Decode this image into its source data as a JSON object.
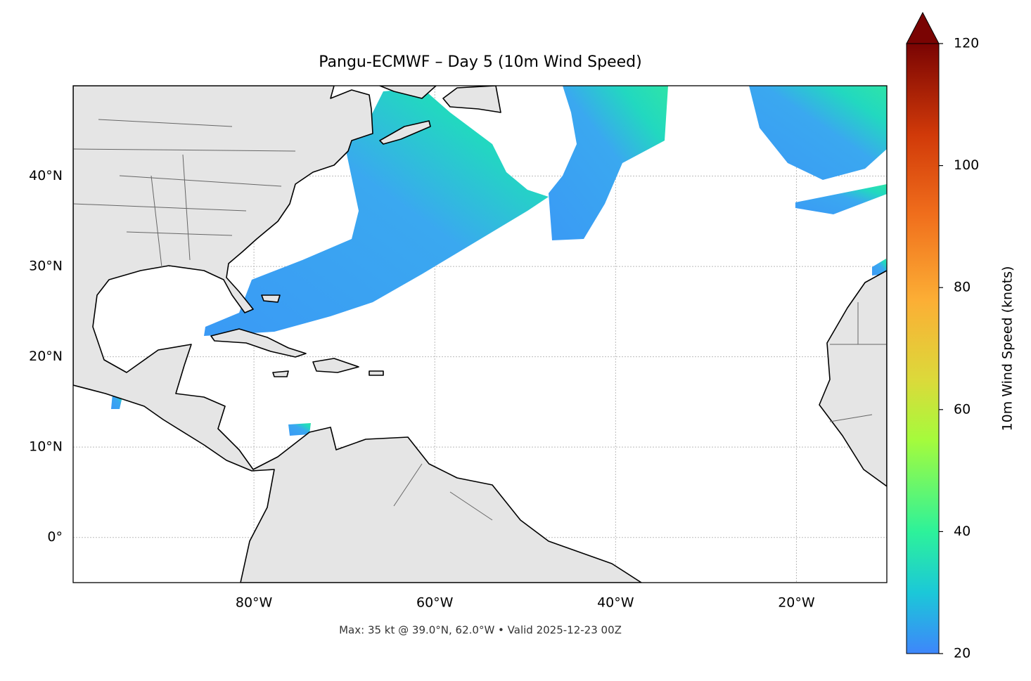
{
  "chart_data": {
    "type": "map",
    "title": "Pangu-ECMWF – Day 5 (10m Wind Speed)",
    "subtitle": "Max: 35 kt @ 39.0°N, 62.0°W • Valid 2025-12-23 00Z",
    "xlim": [
      -100,
      -10
    ],
    "ylim": [
      -5,
      50
    ],
    "xticks": [
      {
        "value": -80,
        "label": "80°W"
      },
      {
        "value": -60,
        "label": "60°W"
      },
      {
        "value": -40,
        "label": "40°W"
      },
      {
        "value": -20,
        "label": "20°W"
      }
    ],
    "yticks": [
      {
        "value": 0,
        "label": "0°"
      },
      {
        "value": 10,
        "label": "10°N"
      },
      {
        "value": 20,
        "label": "20°N"
      },
      {
        "value": 30,
        "label": "30°N"
      },
      {
        "value": 40,
        "label": "40°N"
      }
    ],
    "grid": true,
    "colorbar": {
      "label": "10m Wind Speed (knots)",
      "lim": [
        20,
        120
      ],
      "ticks": [
        20,
        40,
        60,
        80,
        100,
        120
      ]
    }
  }
}
